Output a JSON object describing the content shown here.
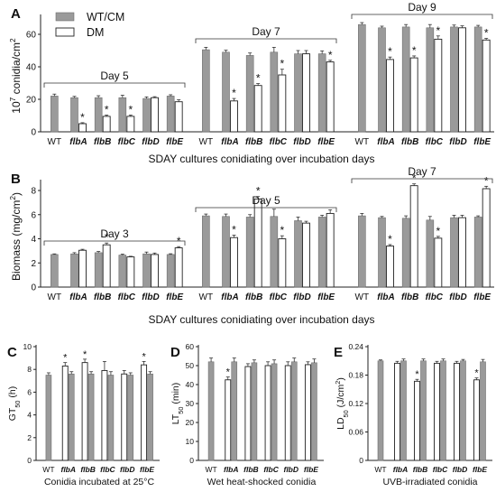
{
  "legend": {
    "wt_label": "WT/CM",
    "dm_label": "DM",
    "wt_color": "#9a9a9a",
    "dm_color": "#ffffff"
  },
  "chart_data": [
    {
      "panel": "A",
      "type": "bar",
      "ylabel": "10^7 conidia/cm^2",
      "xlabel": "SDAY cultures conidiating over incubation days",
      "ylim": [
        0,
        70
      ],
      "yticks": [
        0,
        20,
        40,
        60
      ],
      "categories": [
        "WT",
        "flbA",
        "flbB",
        "flbC",
        "flbD",
        "flbE"
      ],
      "groups": [
        {
          "label": "Day 5",
          "series": [
            {
              "name": "WT/CM",
              "values": [
                22,
                21,
                21,
                21,
                20.5,
                22
              ],
              "err": [
                1.2,
                0.8,
                1.2,
                1.5,
                1,
                0.8
              ]
            },
            {
              "name": "DM",
              "values": [
                null,
                5,
                9.5,
                9.5,
                21,
                18.5
              ],
              "err": [
                0,
                0.6,
                0.8,
                0.8,
                0.6,
                1.2
              ]
            }
          ],
          "significant_dm": [
            false,
            true,
            true,
            true,
            false,
            false
          ]
        },
        {
          "label": "Day 7",
          "series": [
            {
              "name": "WT/CM",
              "values": [
                50.5,
                49,
                47,
                49,
                48,
                48
              ],
              "err": [
                1.5,
                1.2,
                1.5,
                3,
                2,
                1.8
              ]
            },
            {
              "name": "DM",
              "values": [
                null,
                19,
                28.5,
                35,
                48,
                43
              ],
              "err": [
                0,
                1.5,
                1.2,
                3.5,
                2,
                1
              ]
            }
          ],
          "significant_dm": [
            false,
            true,
            true,
            true,
            false,
            true
          ]
        },
        {
          "label": "Day 9",
          "series": [
            {
              "name": "WT/CM",
              "values": [
                66,
                64,
                64.5,
                64,
                64.5,
                64.5
              ],
              "err": [
                1.2,
                1,
                1.5,
                2,
                1.2,
                1
              ]
            },
            {
              "name": "DM",
              "values": [
                null,
                44.5,
                45.5,
                57,
                64,
                56.5
              ],
              "err": [
                0,
                1.5,
                1.2,
                2,
                1.2,
                1
              ]
            }
          ],
          "significant_dm": [
            false,
            true,
            true,
            true,
            false,
            true
          ]
        }
      ]
    },
    {
      "panel": "B",
      "type": "bar",
      "ylabel": "Biomass (mg/cm^2)",
      "xlabel": "SDAY cultures conidiating over incubation days",
      "ylim": [
        0,
        8.6
      ],
      "yticks": [
        0,
        2,
        4,
        6,
        8
      ],
      "categories": [
        "WT",
        "flbA",
        "flbB",
        "flbC",
        "flbD",
        "flbE"
      ],
      "groups": [
        {
          "label": "Day 3",
          "series": [
            {
              "name": "WT/CM",
              "values": [
                2.7,
                2.75,
                2.85,
                2.65,
                2.75,
                2.7
              ],
              "err": [
                0.05,
                0.1,
                0.1,
                0.08,
                0.15,
                0.06
              ]
            },
            {
              "name": "DM",
              "values": [
                null,
                3.05,
                3.5,
                2.5,
                2.7,
                3.25
              ],
              "err": [
                0,
                0.08,
                0.15,
                0.05,
                0.12,
                0.1
              ]
            }
          ],
          "significant_dm": [
            false,
            false,
            true,
            false,
            false,
            true
          ]
        },
        {
          "label": "Day 5",
          "series": [
            {
              "name": "WT/CM",
              "values": [
                5.9,
                5.85,
                5.8,
                5.85,
                5.5,
                5.8
              ],
              "err": [
                0.15,
                0.2,
                0.2,
                0.6,
                0.3,
                0.15
              ]
            },
            {
              "name": "DM",
              "values": [
                null,
                4.1,
                7.3,
                4.0,
                5.3,
                6.1
              ],
              "err": [
                0,
                0.2,
                0.2,
                0.25,
                0.15,
                0.3
              ]
            }
          ],
          "significant_dm": [
            false,
            true,
            true,
            true,
            false,
            false
          ]
        },
        {
          "label": "Day 7",
          "series": [
            {
              "name": "WT/CM",
              "values": [
                5.9,
                5.75,
                5.7,
                5.55,
                5.75,
                5.8
              ],
              "err": [
                0.2,
                0.1,
                0.2,
                0.3,
                0.2,
                0.1
              ]
            },
            {
              "name": "DM",
              "values": [
                null,
                3.4,
                8.4,
                4.05,
                5.75,
                8.15
              ],
              "err": [
                0,
                0.12,
                0.15,
                0.15,
                0.2,
                0.2
              ]
            }
          ],
          "significant_dm": [
            false,
            true,
            true,
            true,
            false,
            true
          ]
        }
      ]
    },
    {
      "panel": "C",
      "type": "bar",
      "ylabel": "GT50 (h)",
      "xlabel": "Conidia incubated at 25°C",
      "ylim": [
        0,
        10
      ],
      "yticks": [
        0,
        2,
        4,
        6,
        8,
        10
      ],
      "categories": [
        "WT",
        "flbA",
        "flbB",
        "flbC",
        "flbD",
        "flbE"
      ],
      "series": [
        {
          "name": "WT/CM",
          "values": [
            7.5,
            7.6,
            7.6,
            7.5,
            7.5,
            7.6
          ],
          "err": [
            0.2,
            0.2,
            0.2,
            0.3,
            0.2,
            0.2
          ]
        },
        {
          "name": "DM",
          "values": [
            null,
            8.3,
            8.6,
            7.9,
            7.6,
            8.4
          ],
          "err": [
            0,
            0.3,
            0.3,
            0.8,
            0.3,
            0.3
          ]
        }
      ],
      "significant_dm": [
        false,
        true,
        true,
        false,
        false,
        true
      ]
    },
    {
      "panel": "D",
      "type": "bar",
      "ylabel": "LT50 (min)",
      "xlabel": "Wet heat-shocked conidia",
      "ylim": [
        0,
        60
      ],
      "yticks": [
        0,
        10,
        20,
        30,
        40,
        50,
        60
      ],
      "categories": [
        "WT",
        "flbA",
        "flbB",
        "flbC",
        "flbD",
        "flbE"
      ],
      "series": [
        {
          "name": "WT/CM",
          "values": [
            52,
            52,
            51.5,
            51,
            52,
            51.5
          ],
          "err": [
            2,
            2,
            1.5,
            2,
            2,
            2
          ]
        },
        {
          "name": "DM",
          "values": [
            null,
            42.5,
            49.5,
            50,
            50,
            50.5
          ],
          "err": [
            0,
            1.5,
            1.5,
            2,
            2,
            1.5
          ]
        }
      ],
      "significant_dm": [
        false,
        true,
        false,
        false,
        false,
        false
      ]
    },
    {
      "panel": "E",
      "type": "bar",
      "ylabel": "LD50 (J/cm^2)",
      "xlabel": "UVB-irradiated conidia",
      "ylim": [
        0,
        0.24
      ],
      "yticks": [
        0,
        0.06,
        0.12,
        0.18,
        0.24
      ],
      "ytick_labels": [
        "0",
        "0.06",
        "0.12",
        "0.18",
        "0.24"
      ],
      "categories": [
        "WT",
        "flbA",
        "flbB",
        "flbC",
        "flbD",
        "flbE"
      ],
      "series": [
        {
          "name": "WT/CM",
          "values": [
            0.21,
            0.21,
            0.21,
            0.21,
            0.21,
            0.208
          ],
          "err": [
            0.002,
            0.004,
            0.004,
            0.004,
            0.003,
            0.005
          ]
        },
        {
          "name": "DM",
          "values": [
            null,
            0.205,
            0.167,
            0.205,
            0.205,
            0.17
          ],
          "err": [
            0,
            0.004,
            0.004,
            0.004,
            0.004,
            0.004
          ]
        }
      ],
      "significant_dm": [
        false,
        false,
        true,
        false,
        false,
        true
      ]
    }
  ]
}
